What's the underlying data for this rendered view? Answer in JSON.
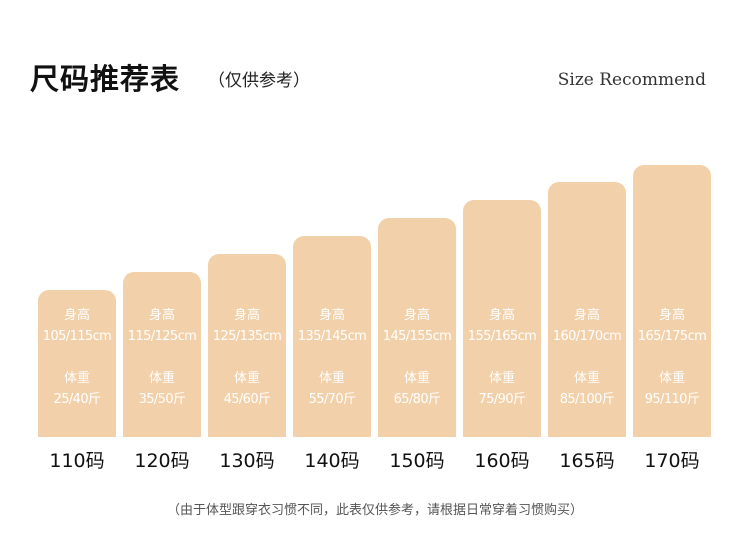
{
  "header": {
    "title": "尺码推荐表",
    "subtitle": "（仅供参考）",
    "english": "Size Recommend"
  },
  "labels": {
    "height": "身高",
    "weight": "体重"
  },
  "sizes": [
    {
      "size": "110码",
      "height": "105/115cm",
      "weight": "25/40斤"
    },
    {
      "size": "120码",
      "height": "115/125cm",
      "weight": "35/50斤"
    },
    {
      "size": "130码",
      "height": "125/135cm",
      "weight": "45/60斤"
    },
    {
      "size": "140码",
      "height": "135/145cm",
      "weight": "55/70斤"
    },
    {
      "size": "150码",
      "height": "145/155cm",
      "weight": "65/80斤"
    },
    {
      "size": "160码",
      "height": "155/165cm",
      "weight": "75/90斤"
    },
    {
      "size": "165码",
      "height": "160/170cm",
      "weight": "85/100斤"
    },
    {
      "size": "170码",
      "height": "165/175cm",
      "weight": "95/110斤"
    }
  ],
  "footer": {
    "note": "（由于体型跟穿衣习惯不同，此表仅供参考，请根据日常穿着习惯购买）"
  },
  "colors": {
    "bar": "#f2d0aa"
  }
}
